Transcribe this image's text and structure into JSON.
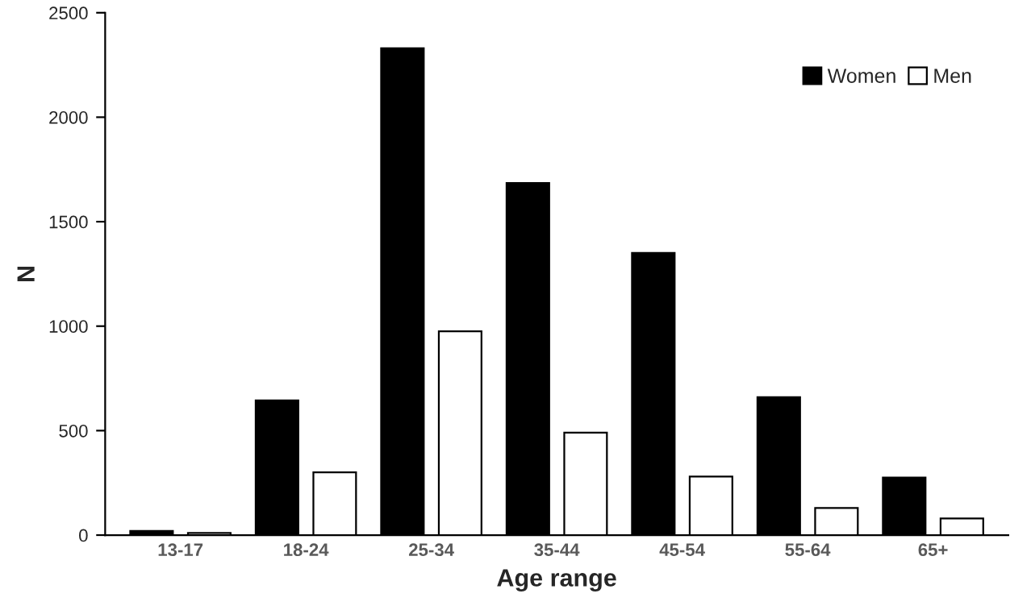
{
  "chart_data": {
    "type": "bar",
    "xlabel": "Age range",
    "ylabel": "N",
    "categories": [
      "13-17",
      "18-24",
      "25-34",
      "35-44",
      "45-54",
      "55-64",
      "65+"
    ],
    "series": [
      {
        "name": "Women",
        "color": "#000000",
        "values": [
          20,
          645,
          2330,
          1685,
          1350,
          660,
          275
        ]
      },
      {
        "name": "Men",
        "color": "#ffffff",
        "values": [
          10,
          300,
          975,
          490,
          280,
          130,
          80
        ]
      }
    ],
    "ylim": [
      0,
      2500
    ],
    "yticks": [
      0,
      500,
      1000,
      1500,
      2000,
      2500
    ],
    "grid": false,
    "legend": "top right"
  }
}
